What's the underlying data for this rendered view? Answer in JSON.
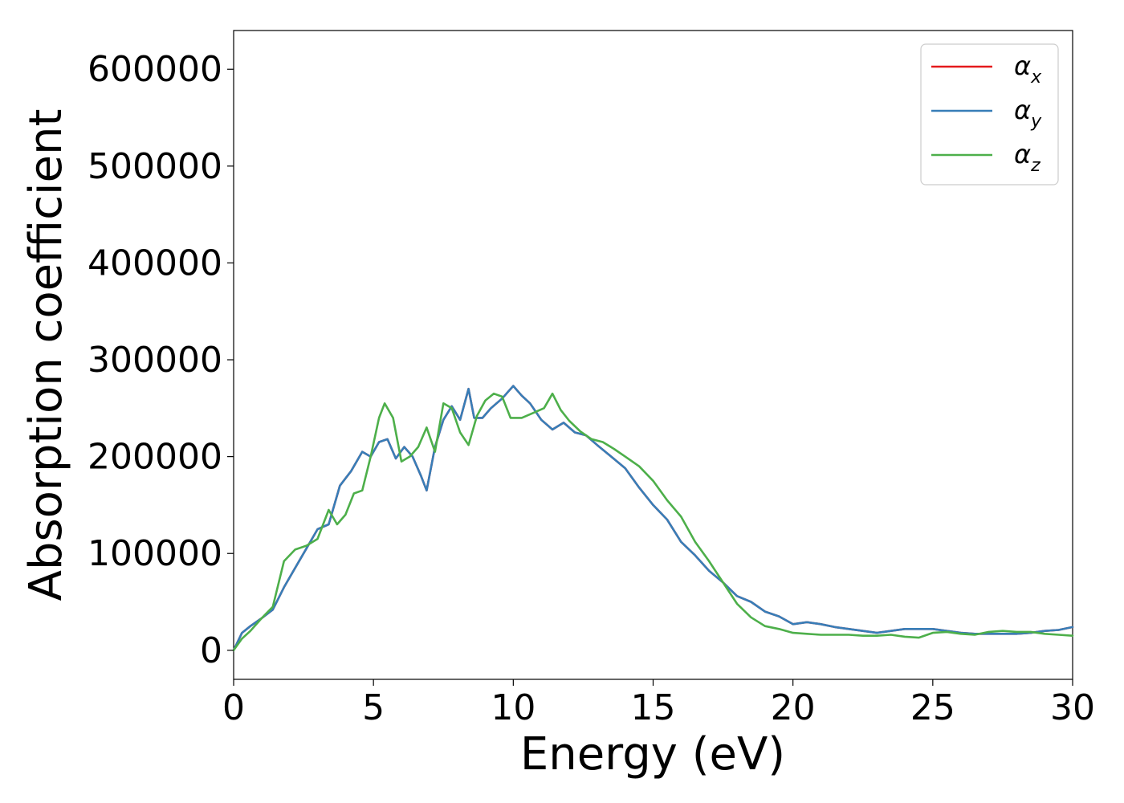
{
  "chart_data": {
    "type": "line",
    "title": "",
    "xlabel": "Energy (eV)",
    "ylabel": "Absorption coefficient",
    "xlim": [
      0,
      30
    ],
    "ylim": [
      -30000,
      640000
    ],
    "xticks": [
      0,
      5,
      10,
      15,
      20,
      25,
      30
    ],
    "yticks": [
      0,
      100000,
      200000,
      300000,
      400000,
      500000,
      600000
    ],
    "xtick_labels": [
      "0",
      "5",
      "10",
      "15",
      "20",
      "25",
      "30"
    ],
    "ytick_labels": [
      "0",
      "100000",
      "200000",
      "300000",
      "400000",
      "500000",
      "600000"
    ],
    "grid": false,
    "legend_position": "top-right",
    "series": [
      {
        "name": "α_x",
        "legend_base": "α",
        "legend_sub": "x",
        "color": "#e41a1c",
        "x": [
          0,
          0.3,
          0.6,
          1.0,
          1.4,
          1.8,
          2.2,
          2.6,
          3.0,
          3.4,
          3.8,
          4.2,
          4.6,
          4.9,
          5.2,
          5.5,
          5.8,
          6.1,
          6.4,
          6.7,
          6.9,
          7.2,
          7.5,
          7.8,
          8.1,
          8.4,
          8.6,
          8.9,
          9.2,
          9.6,
          10.0,
          10.3,
          10.6,
          11.0,
          11.4,
          11.8,
          12.2,
          12.6,
          13.0,
          13.5,
          14.0,
          14.5,
          15.0,
          15.5,
          16.0,
          16.5,
          17.0,
          17.5,
          18.0,
          18.5,
          19.0,
          19.5,
          20.0,
          20.5,
          21.0,
          21.5,
          22.0,
          22.5,
          23.0,
          23.5,
          24.0,
          24.5,
          25.0,
          25.5,
          26.0,
          26.5,
          27.0,
          27.5,
          28.0,
          28.5,
          29.0,
          29.5,
          30.0
        ],
        "values": [
          0,
          18000,
          25000,
          33000,
          42000,
          65000,
          85000,
          105000,
          125000,
          130000,
          170000,
          185000,
          205000,
          200000,
          215000,
          218000,
          198000,
          210000,
          200000,
          180000,
          165000,
          210000,
          238000,
          252000,
          238000,
          270000,
          240000,
          240000,
          250000,
          260000,
          273000,
          263000,
          255000,
          238000,
          228000,
          235000,
          225000,
          222000,
          212000,
          200000,
          188000,
          168000,
          150000,
          135000,
          112000,
          98000,
          82000,
          70000,
          56000,
          50000,
          40000,
          35000,
          27000,
          29000,
          27000,
          24000,
          22000,
          20000,
          18000,
          20000,
          22000,
          22000,
          22000,
          20000,
          18000,
          17000,
          17000,
          17000,
          17000,
          18000,
          20000,
          21000,
          24000
        ]
      },
      {
        "name": "α_y",
        "legend_base": "α",
        "legend_sub": "y",
        "color": "#377eb8",
        "x": [
          0,
          0.3,
          0.6,
          1.0,
          1.4,
          1.8,
          2.2,
          2.6,
          3.0,
          3.4,
          3.8,
          4.2,
          4.6,
          4.9,
          5.2,
          5.5,
          5.8,
          6.1,
          6.4,
          6.7,
          6.9,
          7.2,
          7.5,
          7.8,
          8.1,
          8.4,
          8.6,
          8.9,
          9.2,
          9.6,
          10.0,
          10.3,
          10.6,
          11.0,
          11.4,
          11.8,
          12.2,
          12.6,
          13.0,
          13.5,
          14.0,
          14.5,
          15.0,
          15.5,
          16.0,
          16.5,
          17.0,
          17.5,
          18.0,
          18.5,
          19.0,
          19.5,
          20.0,
          20.5,
          21.0,
          21.5,
          22.0,
          22.5,
          23.0,
          23.5,
          24.0,
          24.5,
          25.0,
          25.5,
          26.0,
          26.5,
          27.0,
          27.5,
          28.0,
          28.5,
          29.0,
          29.5,
          30.0
        ],
        "values": [
          0,
          18000,
          25000,
          33000,
          42000,
          65000,
          85000,
          105000,
          125000,
          130000,
          170000,
          185000,
          205000,
          200000,
          215000,
          218000,
          198000,
          210000,
          200000,
          180000,
          165000,
          210000,
          238000,
          252000,
          238000,
          270000,
          240000,
          240000,
          250000,
          260000,
          273000,
          263000,
          255000,
          238000,
          228000,
          235000,
          225000,
          222000,
          212000,
          200000,
          188000,
          168000,
          150000,
          135000,
          112000,
          98000,
          82000,
          70000,
          56000,
          50000,
          40000,
          35000,
          27000,
          29000,
          27000,
          24000,
          22000,
          20000,
          18000,
          20000,
          22000,
          22000,
          22000,
          20000,
          18000,
          17000,
          17000,
          17000,
          17000,
          18000,
          20000,
          21000,
          24000
        ]
      },
      {
        "name": "α_z",
        "legend_base": "α",
        "legend_sub": "z",
        "color": "#4daf4a",
        "x": [
          0,
          0.3,
          0.6,
          1.0,
          1.4,
          1.8,
          2.2,
          2.6,
          3.0,
          3.4,
          3.7,
          4.0,
          4.3,
          4.6,
          4.9,
          5.2,
          5.4,
          5.7,
          6.0,
          6.3,
          6.6,
          6.9,
          7.2,
          7.5,
          7.8,
          8.1,
          8.4,
          8.7,
          9.0,
          9.3,
          9.6,
          9.9,
          10.3,
          10.7,
          11.1,
          11.4,
          11.7,
          12.0,
          12.4,
          12.8,
          13.2,
          13.6,
          14.0,
          14.5,
          15.0,
          15.5,
          16.0,
          16.5,
          17.0,
          17.5,
          18.0,
          18.5,
          19.0,
          19.5,
          20.0,
          20.5,
          21.0,
          21.5,
          22.0,
          22.5,
          23.0,
          23.5,
          24.0,
          24.5,
          25.0,
          25.5,
          26.0,
          26.5,
          27.0,
          27.5,
          28.0,
          28.5,
          29.0,
          29.5,
          30.0
        ],
        "values": [
          0,
          12000,
          20000,
          33000,
          45000,
          92000,
          104000,
          108000,
          115000,
          145000,
          130000,
          140000,
          162000,
          165000,
          200000,
          240000,
          255000,
          240000,
          195000,
          200000,
          210000,
          230000,
          205000,
          255000,
          250000,
          225000,
          212000,
          242000,
          258000,
          265000,
          262000,
          240000,
          240000,
          245000,
          250000,
          265000,
          248000,
          237000,
          226000,
          218000,
          215000,
          208000,
          200000,
          190000,
          175000,
          155000,
          138000,
          112000,
          92000,
          70000,
          48000,
          34000,
          25000,
          22000,
          18000,
          17000,
          16000,
          16000,
          16000,
          15000,
          15000,
          16000,
          14000,
          13000,
          18000,
          19000,
          17000,
          16000,
          19000,
          20000,
          19000,
          19000,
          17000,
          16000,
          15000
        ]
      }
    ]
  }
}
